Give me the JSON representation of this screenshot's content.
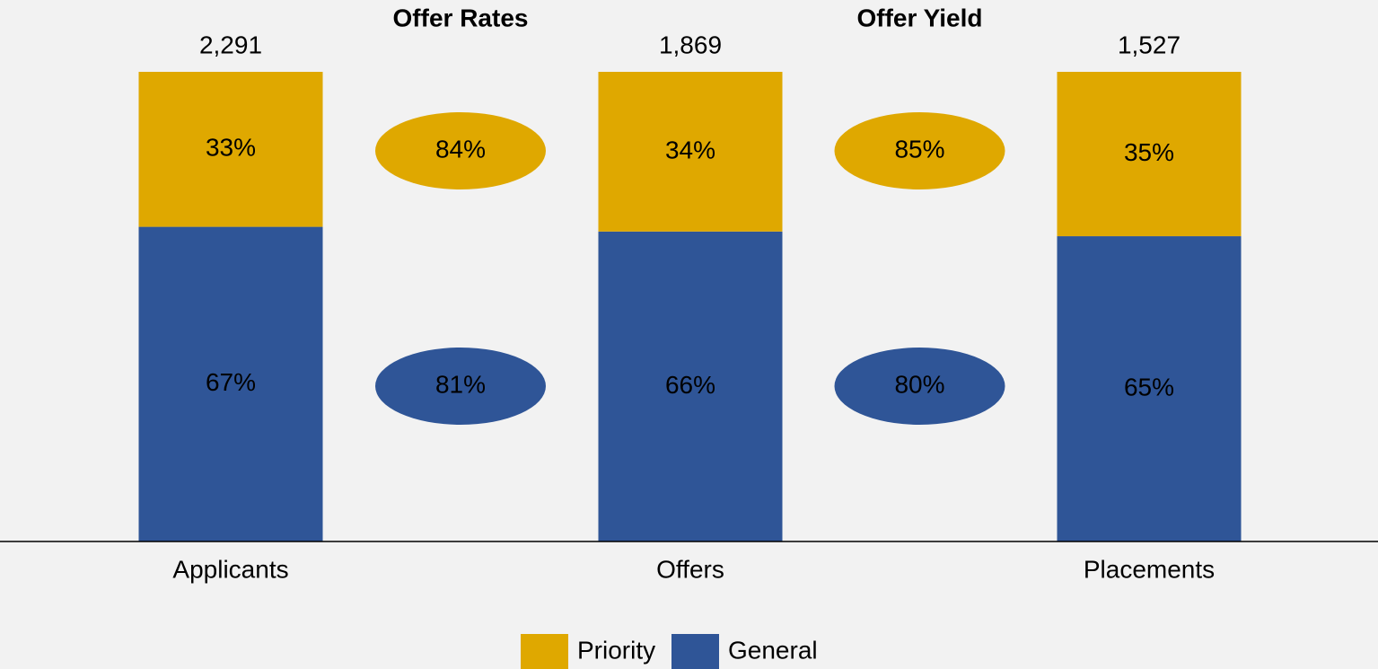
{
  "chart_data": {
    "type": "stacked_bar",
    "categories": [
      "Applicants",
      "Offers",
      "Placements"
    ],
    "series": [
      {
        "name": "Priority",
        "color": "#dfa800",
        "values": [
          33,
          34,
          35
        ],
        "value_labels": [
          "33%",
          "34%",
          "35%"
        ]
      },
      {
        "name": "General",
        "color": "#2f5597",
        "values": [
          67,
          66,
          65
        ],
        "value_labels": [
          "67%",
          "66%",
          "65%"
        ]
      }
    ],
    "totals": {
      "values": [
        2291,
        1869,
        1527
      ],
      "value_labels": [
        "2,291",
        "1,869",
        "1,527"
      ]
    },
    "rates": [
      {
        "title": "Offer Rates",
        "values": [
          84,
          81
        ],
        "value_labels": [
          "84%",
          "81%"
        ]
      },
      {
        "title": "Offer Yield",
        "values": [
          85,
          80
        ],
        "value_labels": [
          "85%",
          "80%"
        ]
      }
    ],
    "ylim": [
      0,
      100
    ]
  }
}
